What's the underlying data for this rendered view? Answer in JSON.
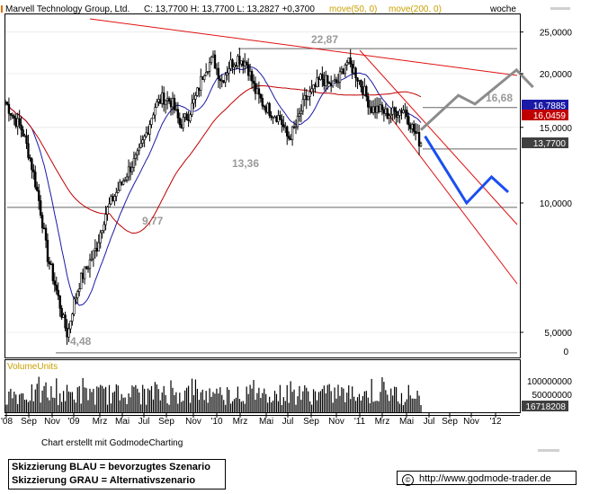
{
  "header": {
    "name": "Marvell Technology Group, Ltd.",
    "quote": "C: 13,7700 H: 13,7700 L: 13,2827 +0,3700",
    "ma50": "move(50, 0)",
    "ma200": "move(200, 0)",
    "period": "woche"
  },
  "volume_label": "VolumeUnits",
  "credit": "Chart erstellt mit GodmodeCharting",
  "legend": {
    "blue": "Skizzierung BLAU = bevorzugtes Szenario",
    "gray": "Skizzierung GRAU = Alternativszenario"
  },
  "url": "http://www.godmode-trader.de",
  "copyright_symbol": "©",
  "colors": {
    "candle": "#000000",
    "ma50": "#1a1aa6",
    "ma200": "#c00000",
    "channel": "#e01010",
    "scenario_blue": "#1a4ff0",
    "scenario_gray": "#8c8c8c",
    "level_line": "#666666",
    "volume_header": "#c8a000",
    "ma_label_gold": "#c8a000"
  },
  "chart_data": {
    "type": "candlestick",
    "scale": "log",
    "ylim": [
      4.0,
      27.0
    ],
    "y_ticks": [
      {
        "value": 25,
        "label": "25,0000"
      },
      {
        "value": 20,
        "label": "20,0000"
      },
      {
        "value": 15,
        "label": "15,0000"
      },
      {
        "value": 10,
        "label": "10,0000"
      },
      {
        "value": 5,
        "label": "5,0000"
      }
    ],
    "y_zero_label": "0",
    "x_ticks": [
      "'08",
      "Sep",
      "Nov",
      "'09",
      "Mrz",
      "Mai",
      "Jul",
      "Sep",
      "Nov",
      "'10",
      "Mrz",
      "Mai",
      "Jul",
      "Sep",
      "Nov",
      "'11",
      "Mrz",
      "Mai",
      "Jul",
      "Sep",
      "Nov",
      "'12"
    ],
    "price_tags": [
      {
        "value": 16.7885,
        "label": "16,7885",
        "color": "#1a1aa6"
      },
      {
        "value": 16.0459,
        "label": "16,0459",
        "color": "#c00000"
      },
      {
        "value": 13.77,
        "label": "13,7700",
        "color": "#404040"
      }
    ],
    "levels": [
      {
        "value": 22.87,
        "label": "22,87"
      },
      {
        "value": 16.68,
        "label": "16,68"
      },
      {
        "value": 13.36,
        "label": "13,36"
      },
      {
        "value": 9.77,
        "label": "9,77"
      },
      {
        "value": 4.48,
        "label": "4,48"
      }
    ],
    "price_path": [
      [
        0,
        17.2
      ],
      [
        2,
        15.8
      ],
      [
        4,
        14.8
      ],
      [
        6,
        12.6
      ],
      [
        8,
        10.2
      ],
      [
        10,
        7.6
      ],
      [
        12,
        6.4
      ],
      [
        14,
        5.3
      ],
      [
        15,
        4.9
      ],
      [
        16,
        5.6
      ],
      [
        18,
        6.6
      ],
      [
        20,
        7.2
      ],
      [
        22,
        7.9
      ],
      [
        24,
        9.4
      ],
      [
        26,
        10.3
      ],
      [
        28,
        11.1
      ],
      [
        30,
        12.1
      ],
      [
        32,
        12.9
      ],
      [
        34,
        14.6
      ],
      [
        36,
        16.8
      ],
      [
        38,
        17.6
      ],
      [
        40,
        17.2
      ],
      [
        42,
        15.2
      ],
      [
        44,
        16.0
      ],
      [
        46,
        17.8
      ],
      [
        48,
        20.6
      ],
      [
        50,
        21.6
      ],
      [
        52,
        19.2
      ],
      [
        54,
        21.0
      ],
      [
        56,
        21.8
      ],
      [
        58,
        21.2
      ],
      [
        60,
        18.3
      ],
      [
        62,
        17.0
      ],
      [
        64,
        16.3
      ],
      [
        66,
        15.8
      ],
      [
        68,
        14.1
      ],
      [
        70,
        15.1
      ],
      [
        72,
        17.3
      ],
      [
        74,
        18.2
      ],
      [
        76,
        19.6
      ],
      [
        78,
        18.8
      ],
      [
        80,
        19.1
      ],
      [
        82,
        21.4
      ],
      [
        84,
        20.3
      ],
      [
        86,
        18.5
      ],
      [
        88,
        16.6
      ],
      [
        90,
        16.5
      ],
      [
        92,
        16.1
      ],
      [
        94,
        16.3
      ],
      [
        96,
        16.6
      ],
      [
        98,
        14.9
      ],
      [
        100,
        13.7
      ]
    ],
    "volume": {
      "ticks": [
        {
          "value": 100000000,
          "label": "100000000"
        },
        {
          "value": 50000000,
          "label": "50000000"
        }
      ],
      "last_label": "16718208"
    },
    "scenario_blue": [
      [
        14.3,
        1
      ],
      [
        10.0,
        11
      ],
      [
        11.5,
        17
      ],
      [
        10.6,
        21
      ]
    ],
    "scenario_gray": [
      [
        14.8,
        0
      ],
      [
        17.8,
        9
      ],
      [
        17.0,
        13
      ],
      [
        20.4,
        23
      ],
      [
        18.6,
        27
      ]
    ]
  }
}
